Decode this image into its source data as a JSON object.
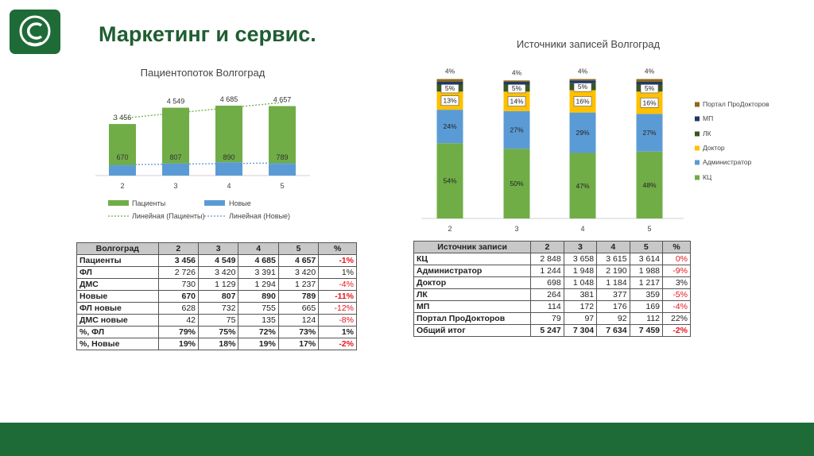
{
  "page": {
    "title": "Маркетинг и сервис.",
    "colors": {
      "brand": "#1f6b37",
      "green": "#70ad47",
      "blue": "#5b9bd5",
      "yellow": "#ffc000",
      "darkgreen": "#375623",
      "navy": "#203864",
      "brown": "#8d6a1f",
      "negative": "#e8141c"
    }
  },
  "chart_data": [
    {
      "type": "bar",
      "title": "Пациентопоток Волгоград",
      "categories": [
        "2",
        "3",
        "4",
        "5"
      ],
      "series": [
        {
          "name": "Пациенты",
          "values": [
            3456,
            4549,
            4685,
            4657
          ]
        },
        {
          "name": "Новые",
          "values": [
            670,
            807,
            890,
            789
          ]
        }
      ],
      "value_labels": {
        "Пациенты": [
          "3 456",
          "4 549",
          "4 685",
          "4 657"
        ],
        "Новые": [
          "670",
          "807",
          "890",
          "789"
        ]
      },
      "trendlines": [
        "Линейная (Пациенты)",
        "Линейная (Новые)"
      ],
      "legend": "bottom",
      "grid": false
    },
    {
      "type": "bar",
      "stacked": true,
      "title": "Источники записей Волгоград",
      "categories": [
        "2",
        "3",
        "4",
        "5"
      ],
      "series": [
        {
          "name": "КЦ",
          "values": [
            54,
            50,
            47,
            48
          ],
          "labels": [
            "54%",
            "50%",
            "47%",
            "48%"
          ]
        },
        {
          "name": "Администратор",
          "values": [
            24,
            27,
            29,
            27
          ],
          "labels": [
            "24%",
            "27%",
            "29%",
            "27%"
          ]
        },
        {
          "name": "Доктор",
          "values": [
            13,
            14,
            16,
            16
          ],
          "labels": [
            "13%",
            "14%",
            "16%",
            "16%"
          ]
        },
        {
          "name": "ЛК",
          "values": [
            5,
            5,
            5,
            5
          ],
          "labels": [
            "5%",
            "5%",
            "5%",
            "5%"
          ]
        },
        {
          "name": "МП",
          "values": [
            2,
            2,
            2,
            2
          ],
          "labels": [
            "",
            "",
            "",
            ""
          ]
        },
        {
          "name": "Портал ПроДокторов",
          "values": [
            2,
            1,
            1,
            2
          ],
          "labels": [
            "",
            "",
            "",
            ""
          ]
        }
      ],
      "top_labels": [
        "4%",
        "4%",
        "4%",
        "4%"
      ],
      "legend": "right",
      "grid": false
    }
  ],
  "table_left": {
    "headers": [
      "Волгоград",
      "2",
      "3",
      "4",
      "5",
      "%"
    ],
    "rows": [
      {
        "label": "Пациенты",
        "values": [
          "3 456",
          "4 549",
          "4 685",
          "4 657"
        ],
        "pct": "-1%",
        "bold": true,
        "neg": true
      },
      {
        "label": "ФЛ",
        "values": [
          "2 726",
          "3 420",
          "3 391",
          "3 420"
        ],
        "pct": "1%",
        "bold": false,
        "neg": false
      },
      {
        "label": "ДМС",
        "values": [
          "730",
          "1 129",
          "1 294",
          "1 237"
        ],
        "pct": "-4%",
        "bold": false,
        "neg": true
      },
      {
        "label": "Новые",
        "values": [
          "670",
          "807",
          "890",
          "789"
        ],
        "pct": "-11%",
        "bold": true,
        "neg": true
      },
      {
        "label": "ФЛ новые",
        "values": [
          "628",
          "732",
          "755",
          "665"
        ],
        "pct": "-12%",
        "bold": false,
        "neg": true
      },
      {
        "label": "ДМС новые",
        "values": [
          "42",
          "75",
          "135",
          "124"
        ],
        "pct": "-8%",
        "bold": false,
        "neg": true
      },
      {
        "label": "%, ФЛ",
        "values": [
          "79%",
          "75%",
          "72%",
          "73%"
        ],
        "pct": "1%",
        "bold": true,
        "neg": false
      },
      {
        "label": "%, Новые",
        "values": [
          "19%",
          "18%",
          "19%",
          "17%"
        ],
        "pct": "-2%",
        "bold": true,
        "neg": true
      }
    ]
  },
  "table_right": {
    "headers": [
      "Источник записи",
      "2",
      "3",
      "4",
      "5",
      "%"
    ],
    "rows": [
      {
        "label": "КЦ",
        "values": [
          "2 848",
          "3 658",
          "3 615",
          "3 614"
        ],
        "pct": "0%",
        "bold": false,
        "neg": true
      },
      {
        "label": "Администратор",
        "values": [
          "1 244",
          "1 948",
          "2 190",
          "1 988"
        ],
        "pct": "-9%",
        "bold": false,
        "neg": true
      },
      {
        "label": "Доктор",
        "values": [
          "698",
          "1 048",
          "1 184",
          "1 217"
        ],
        "pct": "3%",
        "bold": false,
        "neg": false
      },
      {
        "label": "ЛК",
        "values": [
          "264",
          "381",
          "377",
          "359"
        ],
        "pct": "-5%",
        "bold": false,
        "neg": true
      },
      {
        "label": "МП",
        "values": [
          "114",
          "172",
          "176",
          "169"
        ],
        "pct": "-4%",
        "bold": false,
        "neg": true
      },
      {
        "label": "Портал ПроДокторов",
        "values": [
          "79",
          "97",
          "92",
          "112"
        ],
        "pct": "22%",
        "bold": false,
        "neg": false
      },
      {
        "label": "Общий итог",
        "values": [
          "5 247",
          "7 304",
          "7 634",
          "7 459"
        ],
        "pct": "-2%",
        "bold": true,
        "neg": true
      }
    ]
  }
}
